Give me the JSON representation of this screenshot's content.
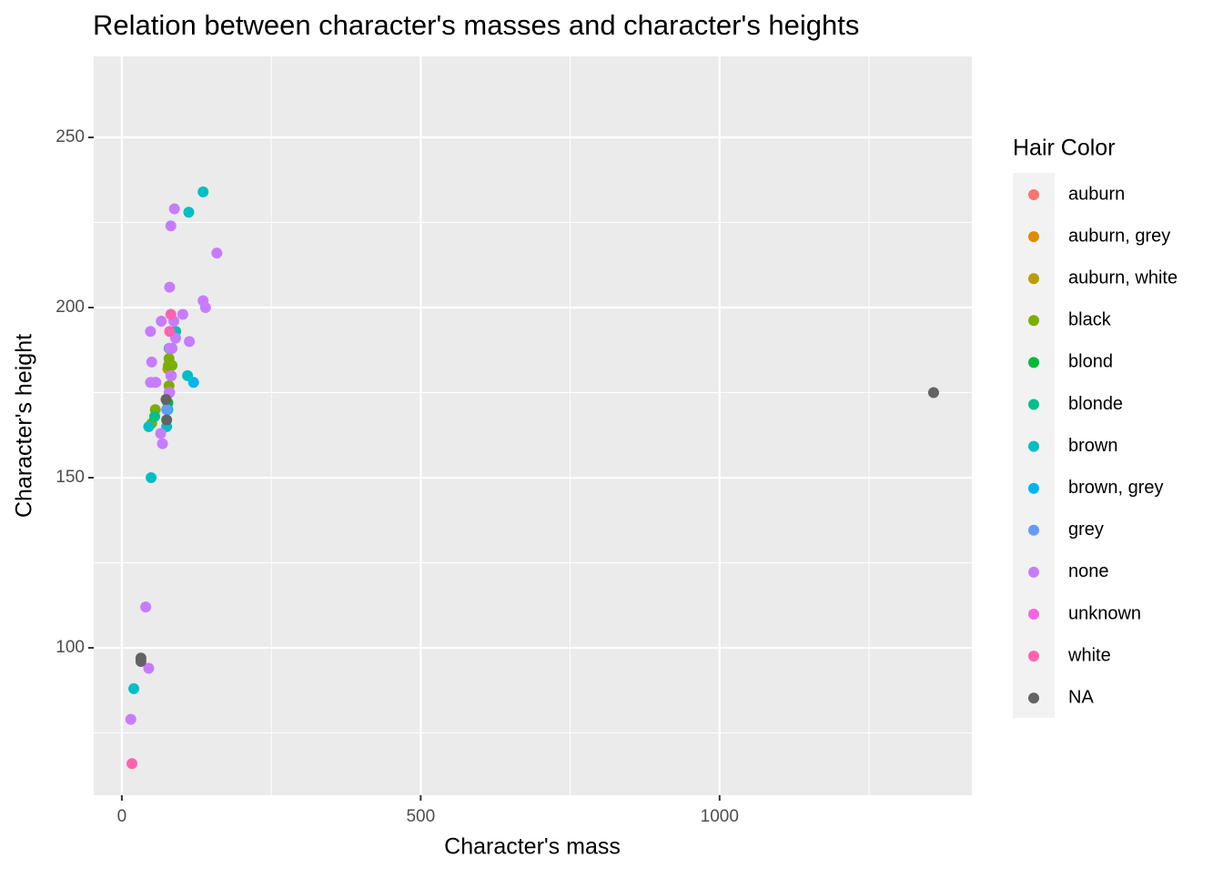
{
  "chart_data": {
    "type": "scatter",
    "title": "Relation between character's masses and character's heights",
    "x_label": "Character's mass",
    "y_label": "Character's height",
    "legend_title": "Hair Color",
    "legend": "right",
    "grid": true,
    "xlim": [
      -47,
      1422
    ],
    "xticks": [
      0,
      500,
      1000
    ],
    "x_minor_grid": [
      250,
      750,
      1250
    ],
    "ylim": [
      56.7,
      273.8
    ],
    "yticks": [
      100,
      150,
      200,
      250
    ],
    "y_minor_grid": [
      75,
      125,
      175,
      225
    ],
    "series": [
      {
        "name": "auburn",
        "color": "#F8766D",
        "x": [],
        "y": []
      },
      {
        "name": "auburn, grey",
        "color": "#DE8C00",
        "x": [],
        "y": []
      },
      {
        "name": "auburn, white",
        "color": "#B79F00",
        "x": [
          77
        ],
        "y": [
          182
        ]
      },
      {
        "name": "black",
        "color": "#7CAE00",
        "x": [
          84,
          78,
          79,
          56,
          50,
          79
        ],
        "y": [
          183,
          183,
          177,
          170,
          166,
          185
        ]
      },
      {
        "name": "blond",
        "color": "#00BA38",
        "x": [
          77,
          84,
          90
        ],
        "y": [
          172,
          188,
          193
        ]
      },
      {
        "name": "blonde",
        "color": "#00C08B",
        "x": [
          55
        ],
        "y": [
          168
        ]
      },
      {
        "name": "brown",
        "color": "#00BFC4",
        "x": [
          49,
          75,
          112,
          110,
          20,
          89,
          45,
          136,
          79,
          77
        ],
        "y": [
          150,
          165,
          228,
          180,
          88,
          193,
          165,
          234,
          188,
          170
        ]
      },
      {
        "name": "brown, grey",
        "color": "#00B4F0",
        "x": [
          120
        ],
        "y": [
          178
        ]
      },
      {
        "name": "grey",
        "color": "#619CFF",
        "x": [
          75
        ],
        "y": [
          170
        ]
      },
      {
        "name": "none",
        "color": "#C77CFF",
        "x": [
          136,
          140,
          113,
          79,
          83,
          68,
          90,
          66,
          82,
          40,
          84,
          80,
          102,
          57,
          159,
          80,
          55,
          48,
          48,
          15,
          45,
          80,
          87,
          50,
          88,
          65,
          82
        ],
        "y": [
          202,
          200,
          190,
          175,
          180,
          160,
          191,
          196,
          224,
          112,
          188,
          188,
          198,
          178,
          216,
          206,
          178,
          193,
          178,
          79,
          94,
          175,
          196,
          184,
          229,
          163,
          180
        ]
      },
      {
        "name": "unknown",
        "color": "#F564E3",
        "x": [],
        "y": []
      },
      {
        "name": "white",
        "color": "#FF64B0",
        "x": [
          17,
          82,
          80
        ],
        "y": [
          66,
          198,
          193
        ]
      },
      {
        "name": "NA",
        "color": "#636363",
        "x": [
          32,
          32,
          75,
          74,
          1358
        ],
        "y": [
          96,
          97,
          167,
          173,
          175
        ]
      }
    ]
  }
}
